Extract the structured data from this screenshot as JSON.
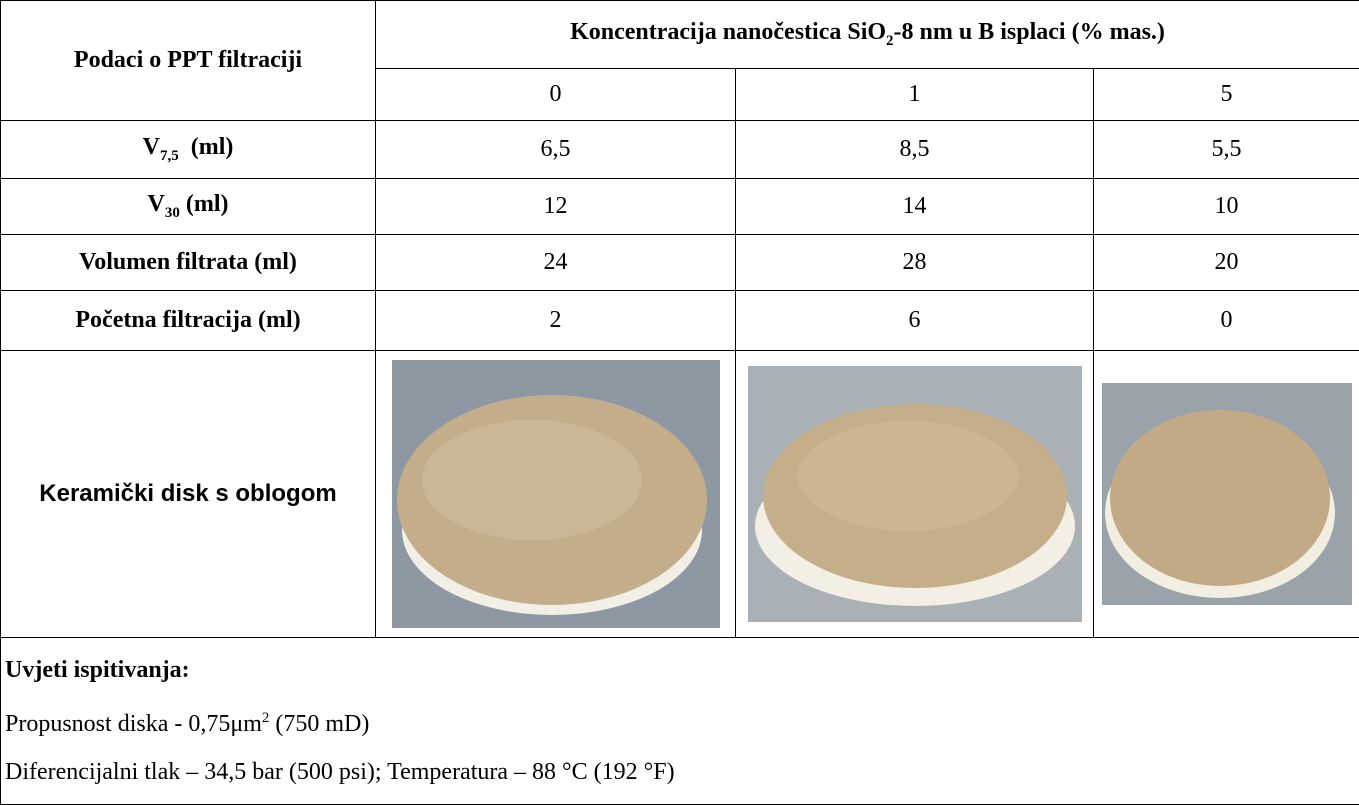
{
  "table": {
    "header": {
      "row_label": "Podaci o PPT filtraciji",
      "group": [
        "Koncentracija nanočestica SiO",
        "2",
        "-8 nm u B isplaci (% mas.)"
      ],
      "columns": [
        "0",
        "1",
        "5"
      ]
    },
    "rows": [
      {
        "label": [
          "V",
          "7,5",
          "  (ml)"
        ],
        "cells": [
          "6,5",
          "8,5",
          "5,5"
        ]
      },
      {
        "label": [
          "V",
          "30",
          " (ml)"
        ],
        "cells": [
          "12",
          "14",
          "10"
        ]
      },
      {
        "label": [
          "Volumen filtrata (ml)"
        ],
        "cells": [
          "24",
          "28",
          "20"
        ]
      },
      {
        "label": [
          "Početna filtracija (ml)"
        ],
        "cells": [
          "2",
          "6",
          "0"
        ]
      }
    ],
    "image_row_label": "Keramički disk s oblogom"
  },
  "conditions": {
    "title": "Uvjeti ispitivanja:",
    "lines": [
      [
        "Propusnost diska - 0,75μm",
        "2",
        " (750 mD)"
      ],
      [
        "Diferencijalni tlak – 34,5 bar (500 psi); Temperatura – 88 °C (192 °F)"
      ]
    ]
  }
}
